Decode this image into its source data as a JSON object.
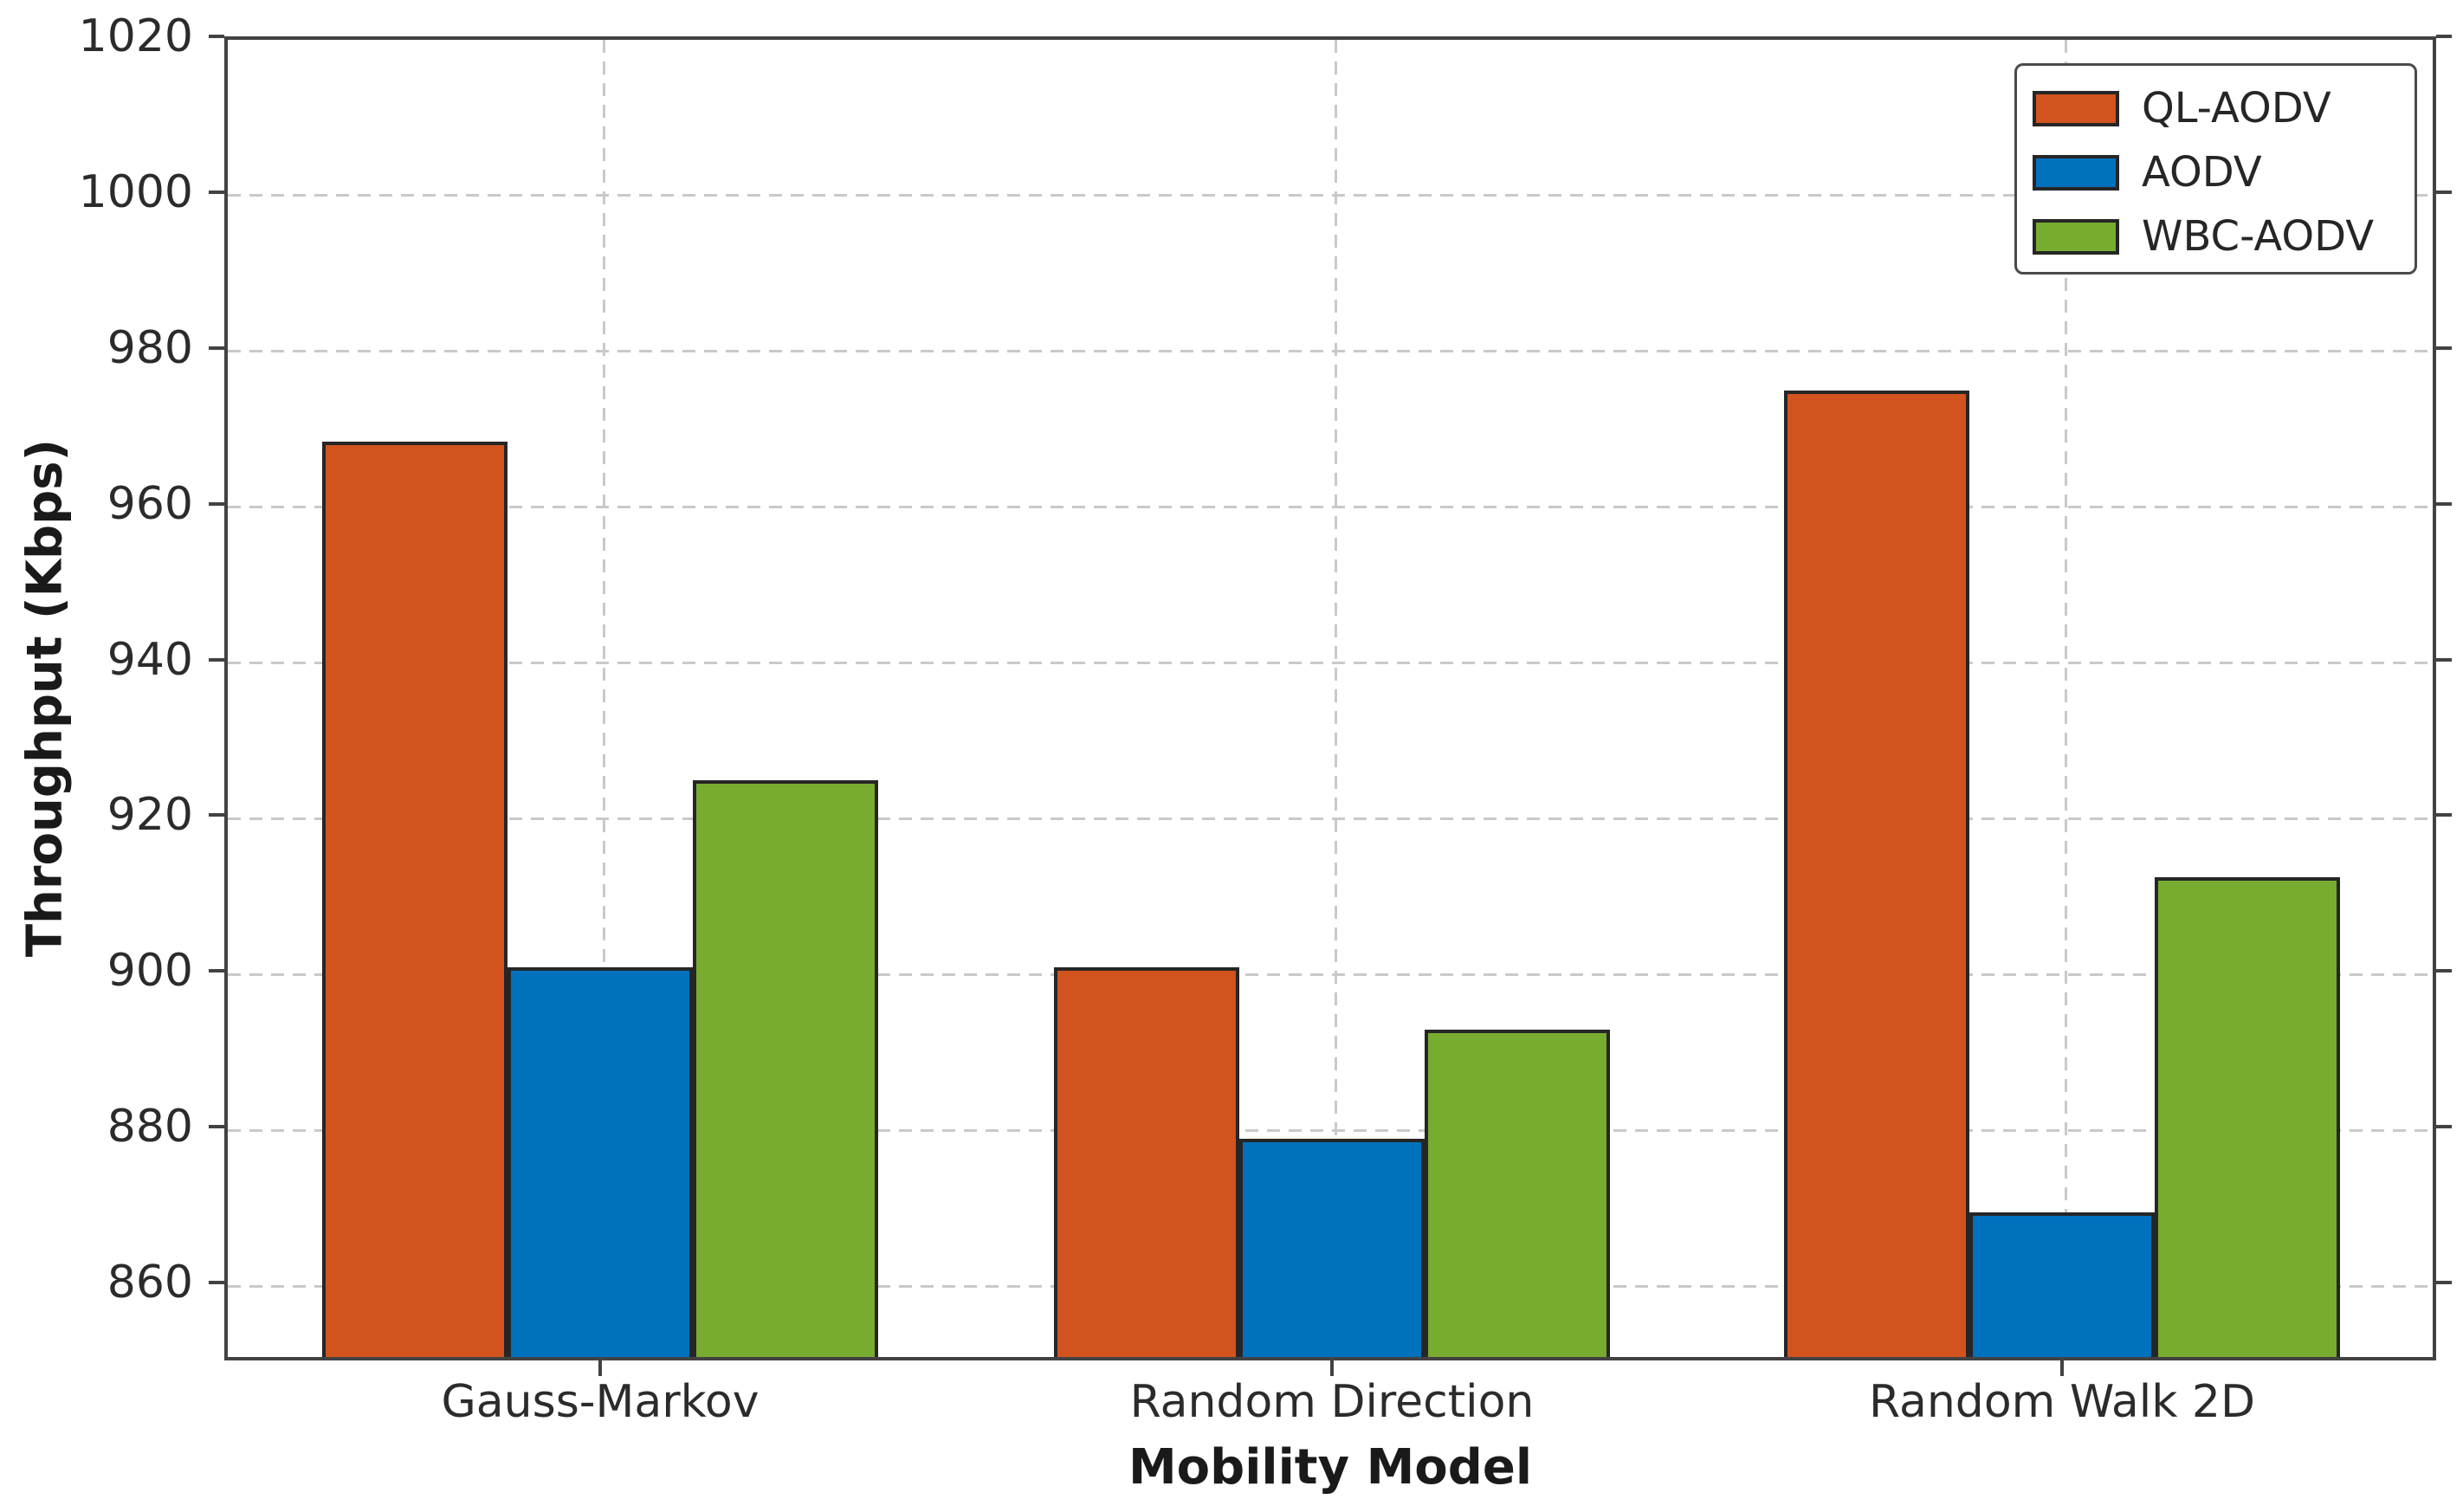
{
  "chart_data": {
    "type": "bar",
    "title": "",
    "xlabel": "Mobility Model",
    "ylabel": "Throughput (Kbps)",
    "categories": [
      "Gauss-Markov",
      "Random Direction",
      "Random Walk 2D"
    ],
    "series": [
      {
        "name": "QL-AODV",
        "color": "#d2531e",
        "values": [
          968.0,
          900.5,
          974.5
        ]
      },
      {
        "name": "AODV",
        "color": "#0072bd",
        "values": [
          900.5,
          878.5,
          869.0
        ]
      },
      {
        "name": "WBC-AODV",
        "color": "#77ac30",
        "values": [
          924.5,
          892.5,
          912.0
        ]
      }
    ],
    "ylim": [
      850,
      1020
    ],
    "yticks": [
      860,
      880,
      900,
      920,
      940,
      960,
      980,
      1000,
      1020
    ],
    "grid": "dashed, both axes, behind bars",
    "legend_position": "upper right",
    "bar_edge_color": "#262626",
    "grid_color": "#c9c9c9",
    "axis_color": "#424242",
    "text_color": "#262626",
    "background_color": "#ffffff"
  }
}
